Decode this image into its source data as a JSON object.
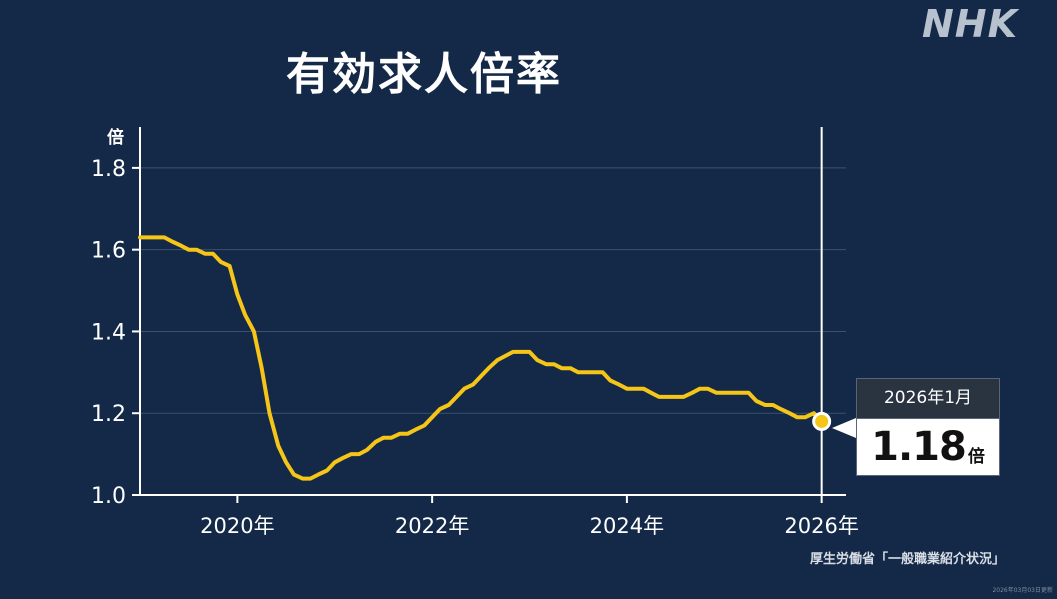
{
  "title": "有効求人倍率",
  "logo": "NHK",
  "source": "厚生労働省「一般職業紹介状況」",
  "updated": "2026年03月03日更新",
  "callout": {
    "period": "2026年1月",
    "value": "1.18",
    "unit": "倍"
  },
  "colors": {
    "background": "#132947",
    "line": "#f5c518",
    "axis": "#ffffff",
    "grid": "#3a5170"
  },
  "chart_data": {
    "type": "line",
    "title": "有効求人倍率",
    "ylabel": "倍",
    "xlabel": "",
    "xlim": [
      2019.0,
      2026.25
    ],
    "ylim": [
      1.0,
      1.9
    ],
    "yticks": [
      1.0,
      1.2,
      1.4,
      1.6,
      1.8
    ],
    "ytick_labels": [
      "1.0",
      "1.2",
      "1.4",
      "1.6",
      "1.8"
    ],
    "xticks": [
      2020,
      2022,
      2024,
      2026
    ],
    "xtick_labels": [
      "2020年",
      "2022年",
      "2024年",
      "2026年"
    ],
    "grid": true,
    "series": [
      {
        "x": [
          2019.0,
          2019.08,
          2019.17,
          2019.25,
          2019.33,
          2019.42,
          2019.5,
          2019.58,
          2019.67,
          2019.75,
          2019.83,
          2019.92,
          2020.0,
          2020.08,
          2020.17,
          2020.25,
          2020.33,
          2020.42,
          2020.5,
          2020.58,
          2020.67,
          2020.75,
          2020.83,
          2020.92,
          2021.0,
          2021.08,
          2021.17,
          2021.25,
          2021.33,
          2021.42,
          2021.5,
          2021.58,
          2021.67,
          2021.75,
          2021.83,
          2021.92,
          2022.0,
          2022.08,
          2022.17,
          2022.25,
          2022.33,
          2022.42,
          2022.5,
          2022.58,
          2022.67,
          2022.75,
          2022.83,
          2022.92,
          2023.0,
          2023.08,
          2023.17,
          2023.25,
          2023.33,
          2023.42,
          2023.5,
          2023.58,
          2023.67,
          2023.75,
          2023.83,
          2023.92,
          2024.0,
          2024.08,
          2024.17,
          2024.25,
          2024.33,
          2024.42,
          2024.5,
          2024.58,
          2024.67,
          2024.75,
          2024.83,
          2024.92,
          2025.0,
          2025.08,
          2025.17,
          2025.25,
          2025.33,
          2025.42,
          2025.5,
          2025.58,
          2025.67,
          2025.75,
          2025.83,
          2025.92,
          2026.0
        ],
        "values": [
          1.63,
          1.63,
          1.63,
          1.63,
          1.62,
          1.61,
          1.6,
          1.6,
          1.59,
          1.59,
          1.57,
          1.56,
          1.49,
          1.44,
          1.4,
          1.31,
          1.2,
          1.12,
          1.08,
          1.05,
          1.04,
          1.04,
          1.05,
          1.06,
          1.08,
          1.09,
          1.1,
          1.1,
          1.11,
          1.13,
          1.14,
          1.14,
          1.15,
          1.15,
          1.16,
          1.17,
          1.19,
          1.21,
          1.22,
          1.24,
          1.26,
          1.27,
          1.29,
          1.31,
          1.33,
          1.34,
          1.35,
          1.35,
          1.35,
          1.33,
          1.32,
          1.32,
          1.31,
          1.31,
          1.3,
          1.3,
          1.3,
          1.3,
          1.28,
          1.27,
          1.26,
          1.26,
          1.26,
          1.25,
          1.24,
          1.24,
          1.24,
          1.24,
          1.25,
          1.26,
          1.26,
          1.25,
          1.25,
          1.25,
          1.25,
          1.25,
          1.23,
          1.22,
          1.22,
          1.21,
          1.2,
          1.19,
          1.19,
          1.2,
          1.18
        ]
      }
    ],
    "highlight": {
      "x": 2026.0,
      "value": 1.18
    }
  }
}
